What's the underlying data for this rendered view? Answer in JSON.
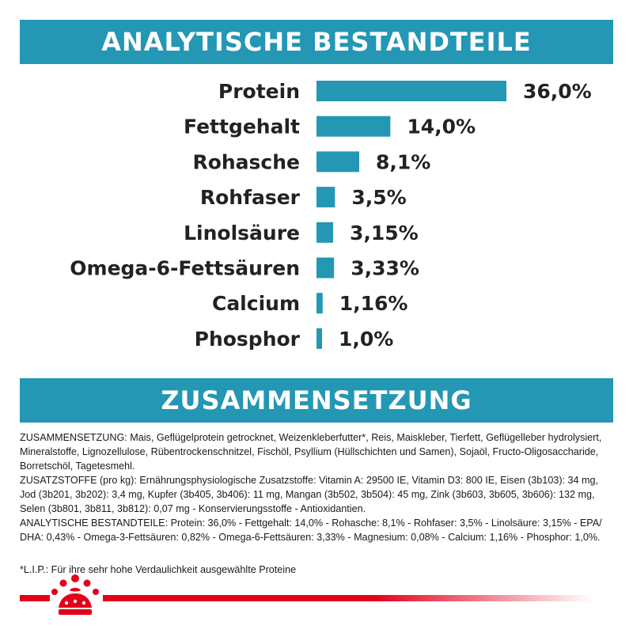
{
  "header_analytics": "ANALYTISCHE BESTANDTEILE",
  "header_composition": "ZUSAMMENSETZUNG",
  "colors": {
    "bar": "#2397b3",
    "header": "#2397b3",
    "brand_red": "#e2001a"
  },
  "chart_data": {
    "type": "bar",
    "orientation": "horizontal",
    "title": "ANALYTISCHE BESTANDTEILE",
    "xlabel": "",
    "ylabel": "",
    "categories": [
      "Protein",
      "Fettgehalt",
      "Rohasche",
      "Rohfaser",
      "Linolsäure",
      "Omega-6-Fettsäuren",
      "Calcium",
      "Phosphor"
    ],
    "values": [
      36.0,
      14.0,
      8.1,
      3.5,
      3.15,
      3.33,
      1.16,
      1.0
    ],
    "value_labels": [
      "36,0%",
      "14,0%",
      "8,1%",
      "3,5%",
      "3,15%",
      "3,33%",
      "1,16%",
      "1,0%"
    ],
    "grid": false
  },
  "composition": {
    "paragraph1": "ZUSAMMENSETZUNG: Mais, Geflügelprotein getrocknet, Weizenkleberfutter*, Reis, Maiskleber, Tierfett, Geflügelleber hydrolysiert, Mineralstoffe, Lignozellulose, Rübentrockenschnitzel, Fischöl, Psyllium (Hüllschichten und Samen), Sojaöl, Fructo-Oligosaccharide, Borretschöl, Tagetesmehl.",
    "paragraph2": "ZUSATZSTOFFE (pro kg): Ernährungsphysiologische Zusatzstoffe: Vitamin A: 29500 IE, Vitamin D3: 800 IE, Eisen (3b103): 34 mg, Jod (3b201, 3b202): 3,4 mg, Kupfer (3b405, 3b406): 11 mg, Mangan (3b502, 3b504): 45 mg, Zink (3b603, 3b605, 3b606): 132 mg, Selen (3b801, 3b811, 3b812): 0,07 mg - Konservierungsstoffe - Antioxidantien.",
    "paragraph3": "ANALYTISCHE BESTANDTEILE: Protein: 36,0% - Fettgehalt: 14,0% - Rohasche: 8,1% - Rohfaser: 3,5% - Linolsäure: 3,15% - EPA/ DHA: 0,43% - Omega-3-Fettsäuren: 0,82% - Omega-6-Fettsäuren: 3,33% - Magnesium: 0,08% - Calcium: 1,16% - Phosphor: 1,0%."
  },
  "footnote": "*L.I.P.: Für ihre sehr hohe Verdaulichkeit ausgewählte Proteine",
  "logo_icon": "crown-logo-icon"
}
